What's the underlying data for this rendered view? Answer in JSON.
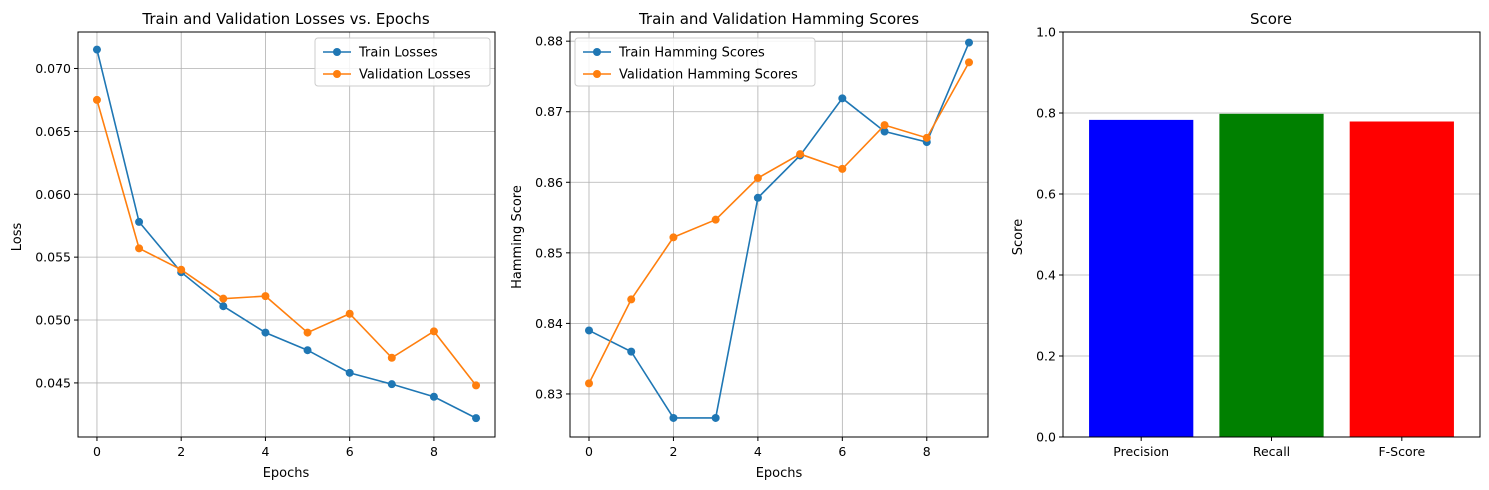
{
  "colors": {
    "blue": "#1f77b4",
    "orange": "#ff7f0e",
    "grid": "#b0b0b0"
  },
  "chart_data": [
    {
      "type": "line",
      "title": "Train and Validation Losses vs. Epochs",
      "xlabel": "Epochs",
      "ylabel": "Loss",
      "x": [
        0,
        1,
        2,
        3,
        4,
        5,
        6,
        7,
        8,
        9
      ],
      "xlim": [
        -0.45,
        9.45
      ],
      "ylim": [
        0.0407,
        0.0729
      ],
      "xticks": [
        0,
        2,
        4,
        6,
        8
      ],
      "xtick_labels": [
        "0",
        "2",
        "4",
        "6",
        "8"
      ],
      "yticks": [
        0.045,
        0.05,
        0.055,
        0.06,
        0.065,
        0.07
      ],
      "ytick_labels": [
        "0.045",
        "0.050",
        "0.055",
        "0.060",
        "0.065",
        "0.070"
      ],
      "grid": true,
      "legend": "top-right",
      "series": [
        {
          "name": "Train Losses",
          "color": "#1f77b4",
          "values": [
            0.0715,
            0.0578,
            0.0538,
            0.0511,
            0.049,
            0.0476,
            0.0458,
            0.0449,
            0.0439,
            0.0422
          ]
        },
        {
          "name": "Validation Losses",
          "color": "#ff7f0e",
          "values": [
            0.0675,
            0.0557,
            0.054,
            0.0517,
            0.0519,
            0.049,
            0.0505,
            0.047,
            0.0491,
            0.0448
          ]
        }
      ]
    },
    {
      "type": "line",
      "title": "Train and Validation Hamming Scores",
      "xlabel": "Epochs",
      "ylabel": "Hamming Score",
      "x": [
        0,
        1,
        2,
        3,
        4,
        5,
        6,
        7,
        8,
        9
      ],
      "xlim": [
        -0.45,
        9.45
      ],
      "ylim": [
        0.8239,
        0.8813
      ],
      "xticks": [
        0,
        2,
        4,
        6,
        8
      ],
      "xtick_labels": [
        "0",
        "2",
        "4",
        "6",
        "8"
      ],
      "yticks": [
        0.83,
        0.84,
        0.85,
        0.86,
        0.87,
        0.88
      ],
      "ytick_labels": [
        "0.83",
        "0.84",
        "0.85",
        "0.86",
        "0.87",
        "0.88"
      ],
      "grid": true,
      "legend": "top-left",
      "series": [
        {
          "name": "Train Hamming Scores",
          "color": "#1f77b4",
          "values": [
            0.839,
            0.836,
            0.8266,
            0.8266,
            0.8578,
            0.8638,
            0.8719,
            0.8672,
            0.8657,
            0.8798
          ]
        },
        {
          "name": "Validation Hamming Scores",
          "color": "#ff7f0e",
          "values": [
            0.8315,
            0.8434,
            0.8522,
            0.8547,
            0.8606,
            0.864,
            0.8619,
            0.8681,
            0.8663,
            0.877
          ]
        }
      ]
    },
    {
      "type": "bar",
      "title": "Score",
      "xlabel": "",
      "ylabel": "Score",
      "categories": [
        "Precision",
        "Recall",
        "F-Score"
      ],
      "values": [
        0.783,
        0.798,
        0.779
      ],
      "colors": [
        "#0000ff",
        "#008000",
        "#ff0000"
      ],
      "ylim": [
        0,
        1
      ],
      "yticks": [
        0,
        0.2,
        0.4,
        0.6,
        0.8,
        1.0
      ],
      "ytick_labels": [
        "0.0",
        "0.2",
        "0.4",
        "0.6",
        "0.8",
        "1.0"
      ],
      "grid": true,
      "grid_axis": "y"
    }
  ]
}
